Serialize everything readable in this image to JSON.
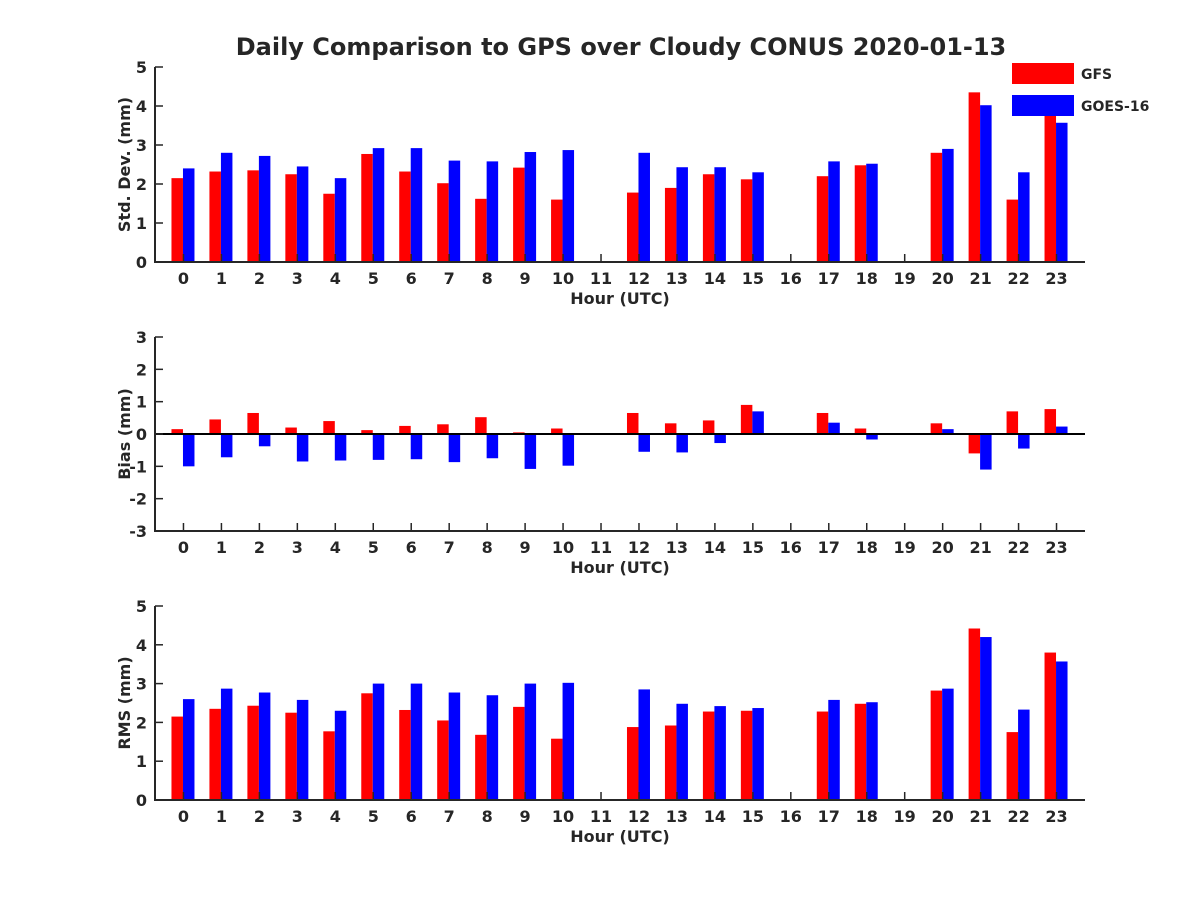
{
  "chart_data": {
    "type": "bar",
    "title": "Daily Comparison to GPS over Cloudy CONUS 2020-01-13",
    "legend": {
      "placement": "top-right",
      "entries": [
        {
          "name": "GFS",
          "color": "#ff0000"
        },
        {
          "name": "GOES-16",
          "color": "#0000ff"
        }
      ]
    },
    "categories": [
      "0",
      "1",
      "2",
      "3",
      "4",
      "5",
      "6",
      "7",
      "8",
      "9",
      "10",
      "11",
      "12",
      "13",
      "14",
      "15",
      "16",
      "17",
      "18",
      "19",
      "20",
      "21",
      "22",
      "23"
    ],
    "panels": [
      {
        "ylabel": "Std. Dev. (mm)",
        "xlabel": "Hour (UTC)",
        "ylim": [
          0,
          5
        ],
        "yticks": [
          "0",
          "1",
          "2",
          "3",
          "4",
          "5"
        ],
        "series": [
          {
            "name": "GFS",
            "color": "#ff0000",
            "values": [
              2.15,
              2.32,
              2.35,
              2.25,
              1.75,
              2.77,
              2.32,
              2.02,
              1.62,
              2.42,
              1.6,
              null,
              1.78,
              1.9,
              2.25,
              2.12,
              null,
              2.2,
              2.48,
              null,
              2.8,
              4.35,
              1.6,
              3.95
            ]
          },
          {
            "name": "GOES-16",
            "color": "#0000ff",
            "values": [
              2.4,
              2.8,
              2.72,
              2.45,
              2.15,
              2.92,
              2.92,
              2.6,
              2.58,
              2.82,
              2.87,
              null,
              2.8,
              2.43,
              2.43,
              2.3,
              null,
              2.58,
              2.52,
              null,
              2.9,
              4.02,
              2.3,
              3.57
            ]
          }
        ]
      },
      {
        "ylabel": "Bias (mm)",
        "xlabel": "Hour (UTC)",
        "ylim": [
          -3,
          3
        ],
        "yticks": [
          "-3",
          "-2",
          "-1",
          "0",
          "1",
          "2",
          "3"
        ],
        "series": [
          {
            "name": "GFS",
            "color": "#ff0000",
            "values": [
              0.15,
              0.45,
              0.65,
              0.2,
              0.4,
              0.12,
              0.25,
              0.3,
              0.52,
              0.05,
              0.17,
              null,
              0.65,
              0.33,
              0.42,
              0.9,
              null,
              0.65,
              0.17,
              null,
              0.33,
              -0.6,
              0.7,
              0.77
            ]
          },
          {
            "name": "GOES-16",
            "color": "#0000ff",
            "values": [
              -1.0,
              -0.72,
              -0.38,
              -0.85,
              -0.82,
              -0.8,
              -0.78,
              -0.87,
              -0.75,
              -1.08,
              -0.98,
              null,
              -0.55,
              -0.57,
              -0.28,
              0.7,
              null,
              0.35,
              -0.17,
              null,
              0.15,
              -1.1,
              -0.45,
              0.23
            ]
          }
        ]
      },
      {
        "ylabel": "RMS (mm)",
        "xlabel": "Hour (UTC)",
        "ylim": [
          0,
          5
        ],
        "yticks": [
          "0",
          "1",
          "2",
          "3",
          "4",
          "5"
        ],
        "series": [
          {
            "name": "GFS",
            "color": "#ff0000",
            "values": [
              2.15,
              2.35,
              2.43,
              2.25,
              1.77,
              2.75,
              2.32,
              2.05,
              1.68,
              2.4,
              1.58,
              null,
              1.88,
              1.92,
              2.28,
              2.3,
              null,
              2.28,
              2.48,
              null,
              2.82,
              4.42,
              1.75,
              3.8
            ]
          },
          {
            "name": "GOES-16",
            "color": "#0000ff",
            "values": [
              2.6,
              2.87,
              2.77,
              2.58,
              2.3,
              3.0,
              3.0,
              2.77,
              2.7,
              3.0,
              3.02,
              null,
              2.85,
              2.48,
              2.42,
              2.37,
              null,
              2.58,
              2.52,
              null,
              2.87,
              4.2,
              2.33,
              3.57
            ]
          }
        ]
      }
    ]
  }
}
